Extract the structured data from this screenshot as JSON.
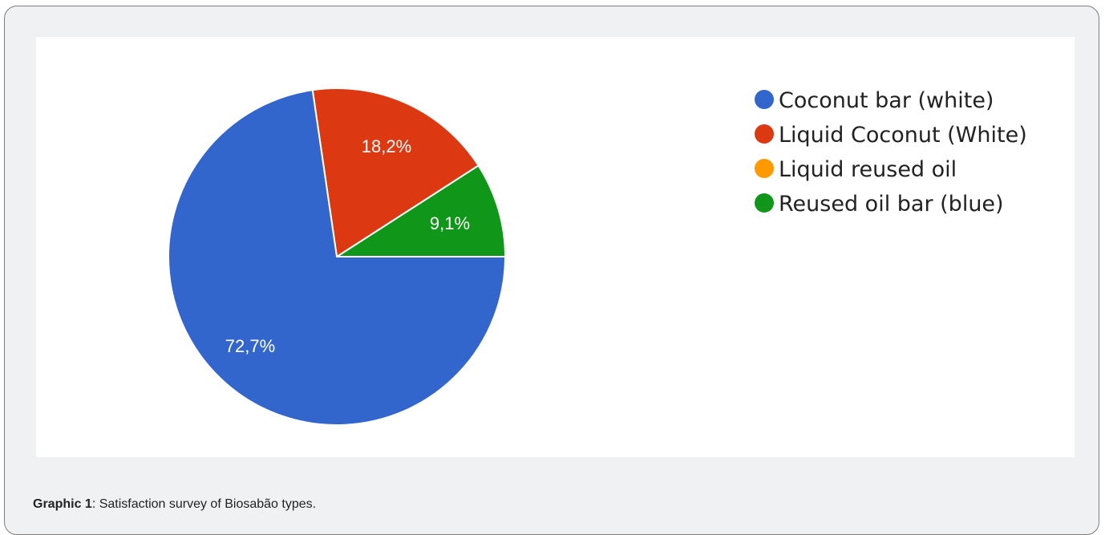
{
  "caption": {
    "label": "Graphic 1",
    "text": ": Satisfaction survey of Biosabão types."
  },
  "chart_data": {
    "type": "pie",
    "title": "",
    "legend_position": "right",
    "slices": [
      {
        "name": "Coconut bar (white)",
        "value": 72.7,
        "label": "72,7%",
        "color": "#3366cc"
      },
      {
        "name": "Liquid Coconut (White)",
        "value": 18.2,
        "label": "18,2%",
        "color": "#dc3912"
      },
      {
        "name": "Liquid reused oil",
        "value": 0,
        "label": "",
        "color": "#ff9900"
      },
      {
        "name": "Reused oil bar (blue)",
        "value": 9.1,
        "label": "9,1%",
        "color": "#109618"
      }
    ]
  }
}
